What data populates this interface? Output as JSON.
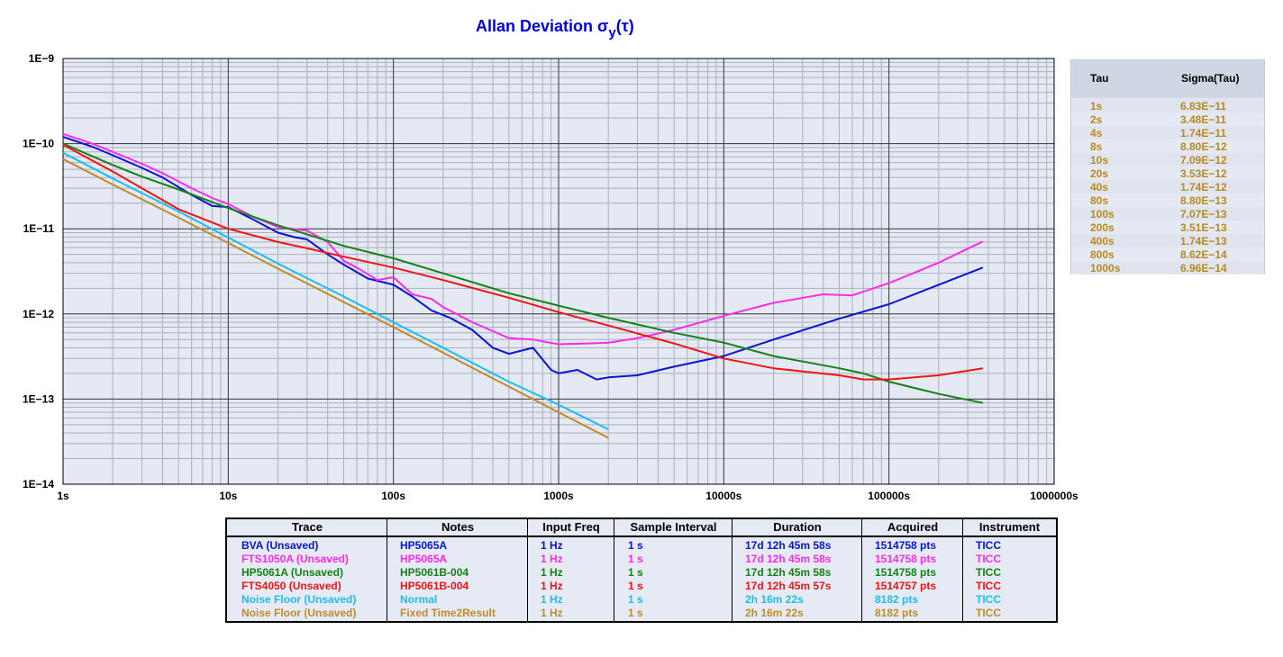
{
  "chart_data": {
    "type": "line",
    "title_main": "Allan Deviation σ",
    "title_sub": "y",
    "title_end": "(τ)",
    "x_scale": "log",
    "y_scale": "log",
    "xlim": [
      1,
      1000000
    ],
    "ylim": [
      1e-14,
      1e-09
    ],
    "grid": true,
    "x_tick_values": [
      1,
      10,
      100,
      1000,
      10000,
      100000,
      1000000
    ],
    "x_tick_labels": [
      "1s",
      "10s",
      "100s",
      "1000s",
      "10000s",
      "100000s",
      "1000000s"
    ],
    "y_tick_values": [
      1e-09,
      1e-10,
      1e-11,
      1e-12,
      1e-13,
      1e-14
    ],
    "y_tick_labels": [
      "1E−9",
      "1E−10",
      "1E−11",
      "1E−12",
      "1E−13",
      "1E−14"
    ],
    "series": [
      {
        "name": "BVA (Unsaved)",
        "color": "#0a14d2",
        "x": [
          1,
          1.5,
          2,
          3,
          4,
          6,
          8,
          10,
          14,
          20,
          25,
          30,
          40,
          50,
          70,
          100,
          130,
          170,
          220,
          300,
          400,
          500,
          700,
          900,
          1000,
          1300,
          1700,
          2000,
          3000,
          5000,
          10000,
          20000,
          50000,
          100000,
          200000,
          370000
        ],
        "y": [
          1.2e-10,
          9.2e-11,
          7.3e-11,
          5.2e-11,
          4e-11,
          2.5e-11,
          1.85e-11,
          1.8e-11,
          1.3e-11,
          9e-12,
          8e-12,
          7.5e-12,
          5e-12,
          3.8e-12,
          2.6e-12,
          2.2e-12,
          1.6e-12,
          1.1e-12,
          9e-13,
          6.5e-13,
          4e-13,
          3.4e-13,
          4e-13,
          2.2e-13,
          2e-13,
          2.2e-13,
          1.7e-13,
          1.8e-13,
          1.9e-13,
          2.4e-13,
          3.2e-13,
          5e-13,
          8.8e-13,
          1.3e-12,
          2.2e-12,
          3.5e-12
        ]
      },
      {
        "name": "FTS1050A (Unsaved)",
        "color": "#ff2be6",
        "x": [
          1,
          1.5,
          2,
          3,
          4,
          6,
          8,
          10,
          14,
          20,
          30,
          40,
          50,
          60,
          80,
          100,
          130,
          170,
          200,
          300,
          500,
          700,
          1000,
          1500,
          2000,
          3000,
          5000,
          10000,
          20000,
          40000,
          60000,
          100000,
          200000,
          370000
        ],
        "y": [
          1.3e-10,
          1e-10,
          8e-11,
          5.8e-11,
          4.5e-11,
          3e-11,
          2.3e-11,
          1.95e-11,
          1.4e-11,
          1.05e-11,
          9.5e-12,
          7e-12,
          4.2e-12,
          3.5e-12,
          2.5e-12,
          2.7e-12,
          1.7e-12,
          1.5e-12,
          1.2e-12,
          8e-13,
          5.2e-13,
          5e-13,
          4.4e-13,
          4.5e-13,
          4.6e-13,
          5.2e-13,
          6.5e-13,
          9.5e-13,
          1.35e-12,
          1.7e-12,
          1.65e-12,
          2.3e-12,
          4e-12,
          7.1e-12
        ]
      },
      {
        "name": "HP5061A (Unsaved)",
        "color": "#148214",
        "x": [
          1,
          2,
          3,
          5,
          10,
          20,
          50,
          100,
          200,
          500,
          1000,
          2000,
          5000,
          10000,
          20000,
          50000,
          70000,
          100000,
          200000,
          370000
        ],
        "y": [
          1e-10,
          5.6e-11,
          4.1e-11,
          2.9e-11,
          1.75e-11,
          1.1e-11,
          6.3e-12,
          4.5e-12,
          3e-12,
          1.75e-12,
          1.25e-12,
          9e-13,
          6e-13,
          4.6e-13,
          3.2e-13,
          2.3e-13,
          2e-13,
          1.6e-13,
          1.15e-13,
          9e-14
        ]
      },
      {
        "name": "FTS4050 (Unsaved)",
        "color": "#f01414",
        "x": [
          1,
          2,
          3,
          5,
          10,
          20,
          30,
          50,
          100,
          200,
          500,
          1000,
          2000,
          5000,
          10000,
          20000,
          50000,
          70000,
          100000,
          200000,
          370000
        ],
        "y": [
          9.7e-11,
          4.7e-11,
          3e-11,
          1.7e-11,
          1e-11,
          7e-12,
          5.9e-12,
          4.7e-12,
          3.5e-12,
          2.5e-12,
          1.55e-12,
          1.05e-12,
          7.3e-13,
          4.5e-13,
          3e-13,
          2.3e-13,
          1.9e-13,
          1.7e-13,
          1.7e-13,
          1.9e-13,
          2.3e-13
        ]
      },
      {
        "name": "Noise Floor (Unsaved)",
        "color": "#1ebeec",
        "x": [
          1,
          2,
          5,
          10,
          20,
          50,
          100,
          200,
          500,
          1000,
          2000
        ],
        "y": [
          7.8e-11,
          3.9e-11,
          1.6e-11,
          7.9e-12,
          3.9e-12,
          1.6e-12,
          8e-13,
          4e-13,
          1.6e-13,
          8.6e-14,
          4.4e-14
        ]
      },
      {
        "name": "Noise Floor (Unsaved)",
        "color": "#be8c28",
        "x": [
          1,
          2,
          5,
          10,
          20,
          50,
          100,
          200,
          500,
          1000,
          2000
        ],
        "y": [
          6.6e-11,
          3.3e-11,
          1.35e-11,
          6.8e-12,
          3.4e-12,
          1.38e-12,
          7e-13,
          3.5e-13,
          1.4e-13,
          7e-14,
          3.5e-14
        ]
      }
    ]
  },
  "tau_table": {
    "header_tau": "Tau",
    "header_sigma": "Sigma(Tau)",
    "rows": [
      {
        "tau": "1s",
        "sigma": "6.83E−11"
      },
      {
        "tau": "2s",
        "sigma": "3.48E−11"
      },
      {
        "tau": "4s",
        "sigma": "1.74E−11"
      },
      {
        "tau": "8s",
        "sigma": "8.80E−12"
      },
      {
        "tau": "10s",
        "sigma": "7.09E−12"
      },
      {
        "tau": "20s",
        "sigma": "3.53E−12"
      },
      {
        "tau": "40s",
        "sigma": "1.74E−12"
      },
      {
        "tau": "80s",
        "sigma": "8.80E−13"
      },
      {
        "tau": "100s",
        "sigma": "7.07E−13"
      },
      {
        "tau": "200s",
        "sigma": "3.51E−13"
      },
      {
        "tau": "400s",
        "sigma": "1.74E−13"
      },
      {
        "tau": "800s",
        "sigma": "8.62E−14"
      },
      {
        "tau": "1000s",
        "sigma": "6.96E−14"
      }
    ]
  },
  "trace_table": {
    "headers": [
      "Trace",
      "Notes",
      "Input Freq",
      "Sample Interval",
      "Duration",
      "Acquired",
      "Instrument"
    ],
    "rows": [
      {
        "color": "#0a14d2",
        "cells": [
          "BVA (Unsaved)",
          "HP5065A",
          "1 Hz",
          "1 s",
          "17d 12h 45m 58s",
          "1514758 pts",
          "TICC"
        ]
      },
      {
        "color": "#ff2be6",
        "cells": [
          "FTS1050A (Unsaved)",
          "HP5065A",
          "1 Hz",
          "1 s",
          "17d 12h 45m 58s",
          "1514758 pts",
          "TICC"
        ]
      },
      {
        "color": "#148214",
        "cells": [
          "HP5061A (Unsaved)",
          "HP5061B-004",
          "1 Hz",
          "1 s",
          "17d 12h 45m 58s",
          "1514758 pts",
          "TICC"
        ]
      },
      {
        "color": "#f01414",
        "cells": [
          "FTS4050 (Unsaved)",
          "HP5061B-004",
          "1 Hz",
          "1 s",
          "17d 12h 45m 57s",
          "1514757 pts",
          "TICC"
        ]
      },
      {
        "color": "#1ebeec",
        "cells": [
          "Noise Floor (Unsaved)",
          "Normal",
          "1 Hz",
          "1 s",
          "2h 16m 22s",
          "8182 pts",
          "TICC"
        ]
      },
      {
        "color": "#be8c28",
        "cells": [
          "Noise Floor (Unsaved)",
          "Fixed Time2Result",
          "1 Hz",
          "1 s",
          "2h 16m 22s",
          "8182 pts",
          "TICC"
        ]
      }
    ]
  }
}
